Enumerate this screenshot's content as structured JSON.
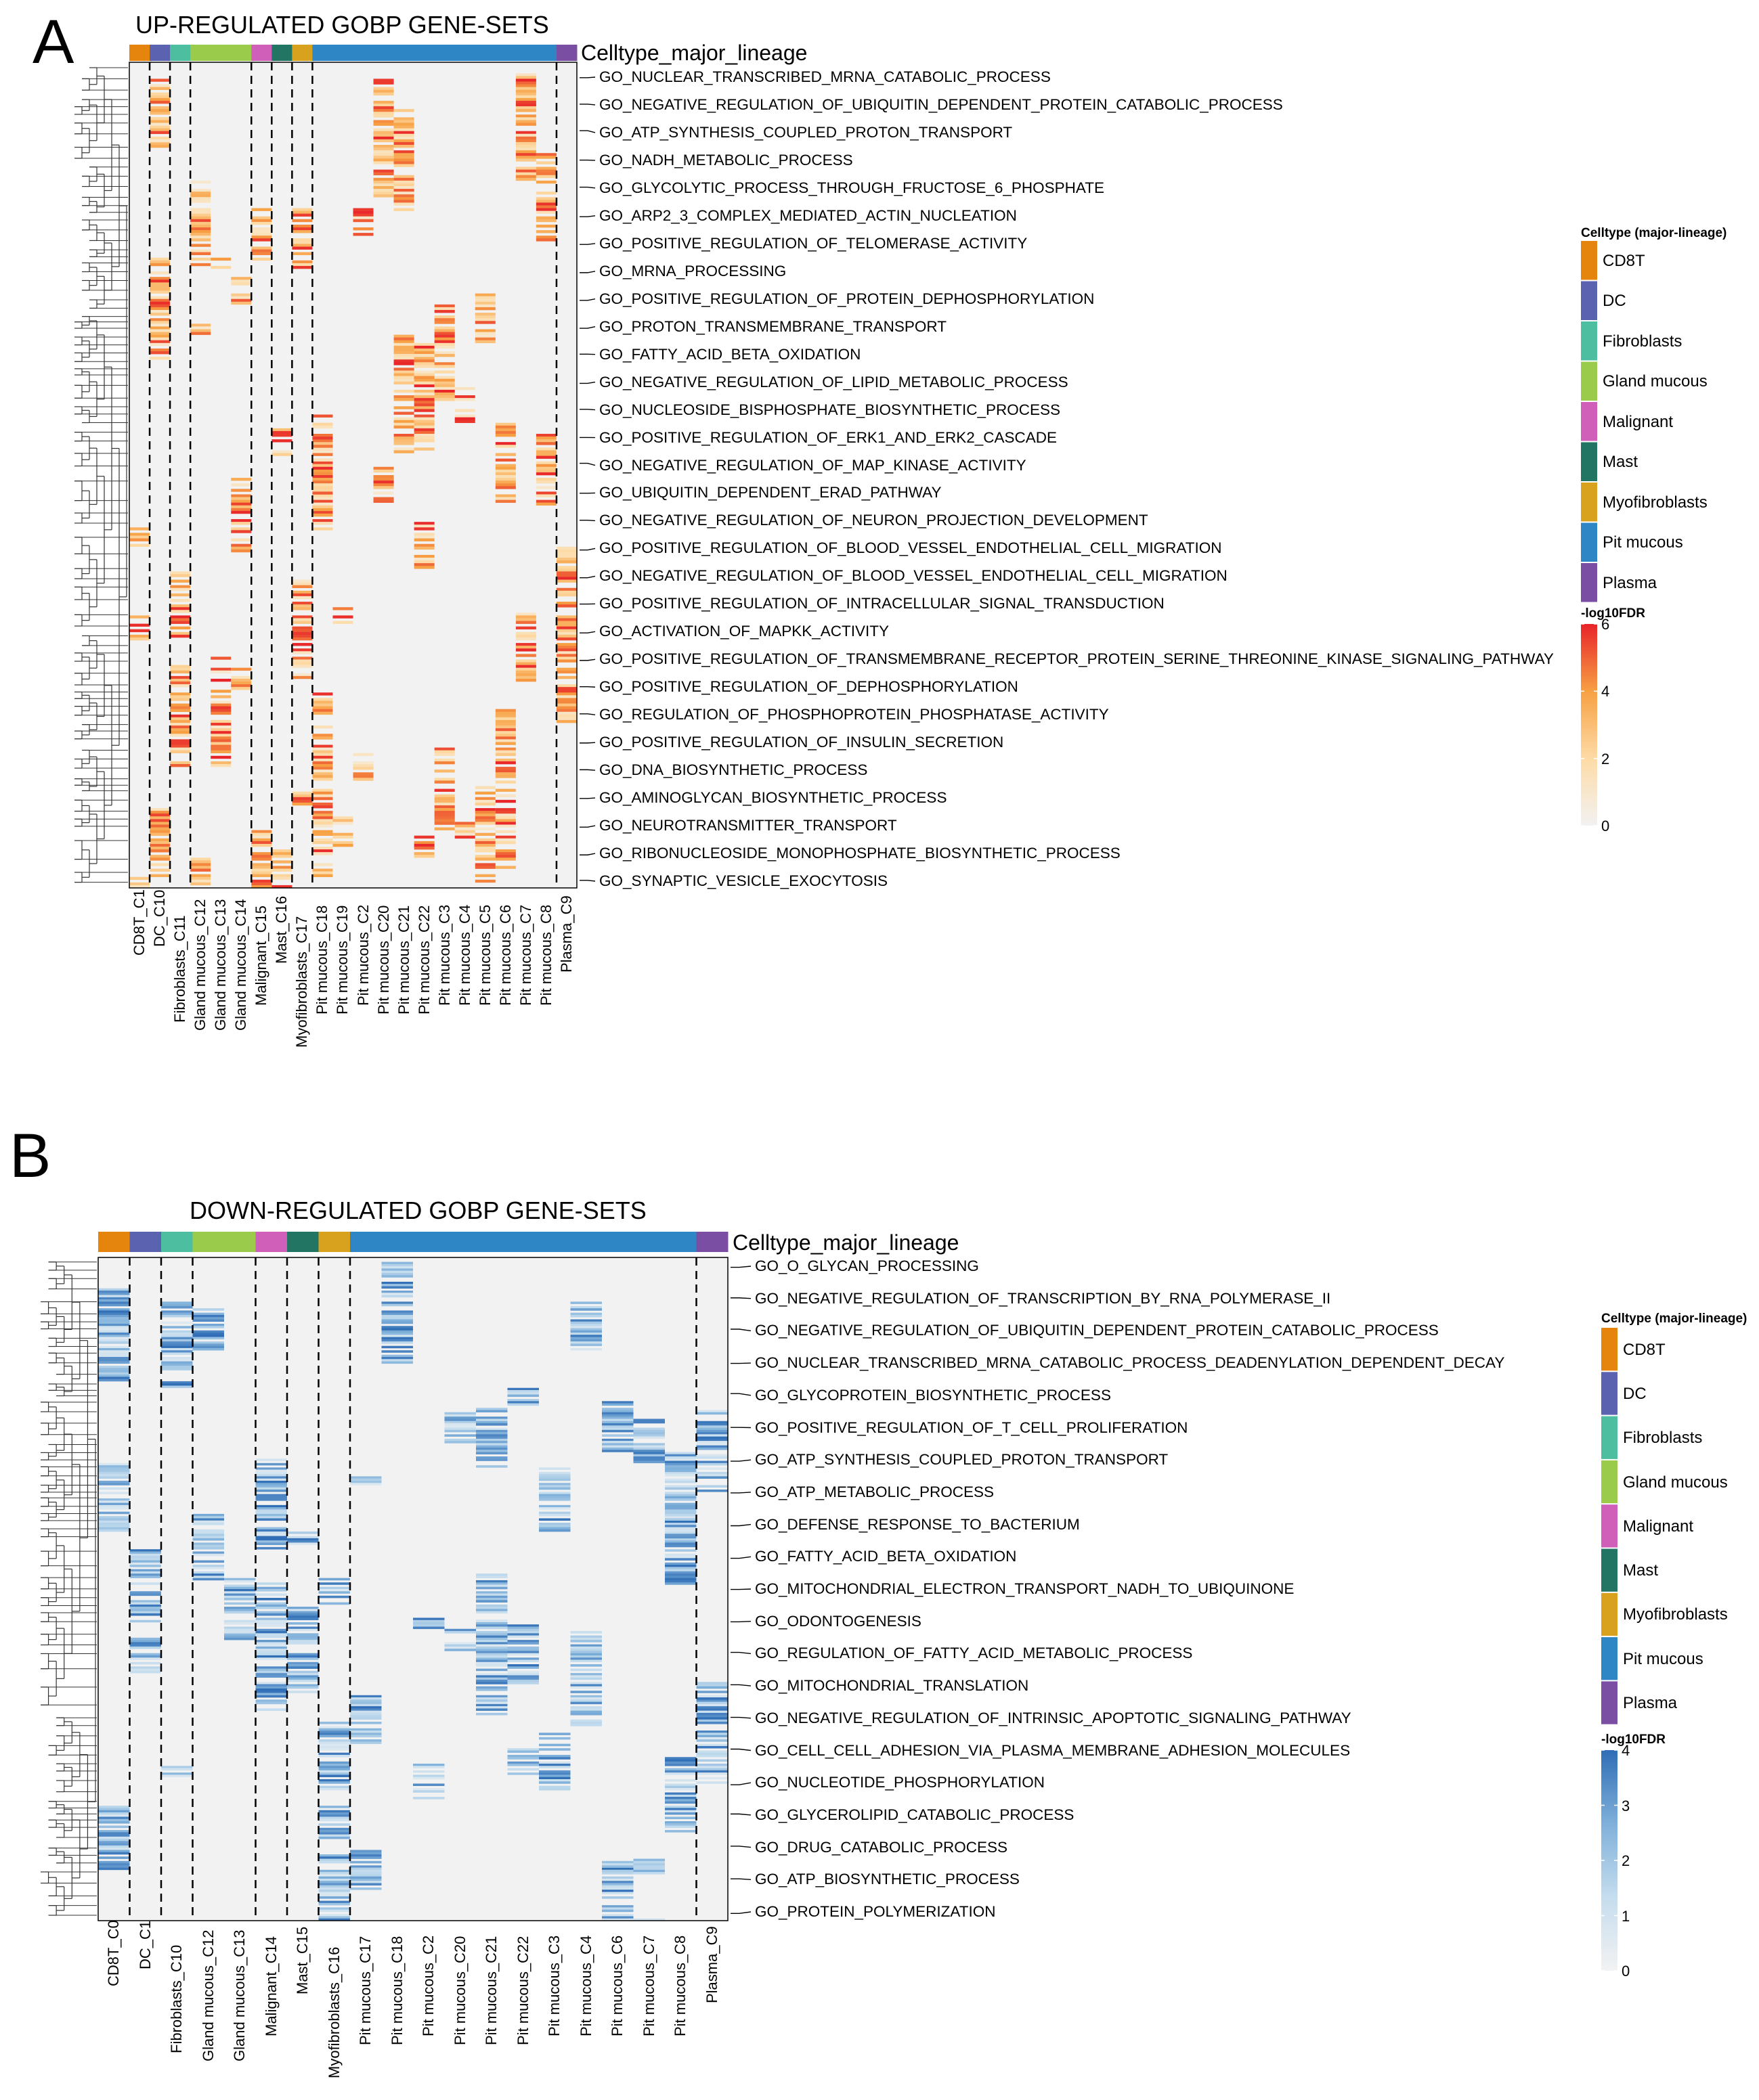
{
  "panels": [
    {
      "letter": "A",
      "title": "UP-REGULATED GOBP GENE-SETS",
      "annotation_name": "Celltype_major_lineage",
      "legend_title": "Celltype (major-lineage)",
      "scale_title": "-log10FDR",
      "scale_ticks": [
        "6",
        "4",
        "2",
        "0"
      ],
      "columns": [
        {
          "label": "CD8T_C1",
          "lineage": "CD8T"
        },
        {
          "label": "DC_C10",
          "lineage": "DC"
        },
        {
          "label": "Fibroblasts_C11",
          "lineage": "Fibroblasts"
        },
        {
          "label": "Gland mucous_C12",
          "lineage": "Gland mucous"
        },
        {
          "label": "Gland mucous_C13",
          "lineage": "Gland mucous"
        },
        {
          "label": "Gland mucous_C14",
          "lineage": "Gland mucous"
        },
        {
          "label": "Malignant_C15",
          "lineage": "Malignant"
        },
        {
          "label": "Mast_C16",
          "lineage": "Mast"
        },
        {
          "label": "Myofibroblasts_C17",
          "lineage": "Myofibroblasts"
        },
        {
          "label": "Pit mucous_C18",
          "lineage": "Pit mucous"
        },
        {
          "label": "Pit mucous_C19",
          "lineage": "Pit mucous"
        },
        {
          "label": "Pit mucous_C2",
          "lineage": "Pit mucous"
        },
        {
          "label": "Pit mucous_C20",
          "lineage": "Pit mucous"
        },
        {
          "label": "Pit mucous_C21",
          "lineage": "Pit mucous"
        },
        {
          "label": "Pit mucous_C22",
          "lineage": "Pit mucous"
        },
        {
          "label": "Pit mucous_C3",
          "lineage": "Pit mucous"
        },
        {
          "label": "Pit mucous_C4",
          "lineage": "Pit mucous"
        },
        {
          "label": "Pit mucous_C5",
          "lineage": "Pit mucous"
        },
        {
          "label": "Pit mucous_C6",
          "lineage": "Pit mucous"
        },
        {
          "label": "Pit mucous_C7",
          "lineage": "Pit mucous"
        },
        {
          "label": "Pit mucous_C8",
          "lineage": "Pit mucous"
        },
        {
          "label": "Plasma_C9",
          "lineage": "Plasma"
        }
      ],
      "gene_sets": [
        "GO_NUCLEAR_TRANSCRIBED_MRNA_CATABOLIC_PROCESS",
        "GO_NEGATIVE_REGULATION_OF_UBIQUITIN_DEPENDENT_PROTEIN_CATABOLIC_PROCESS",
        "GO_ATP_SYNTHESIS_COUPLED_PROTON_TRANSPORT",
        "GO_NADH_METABOLIC_PROCESS",
        "GO_GLYCOLYTIC_PROCESS_THROUGH_FRUCTOSE_6_PHOSPHATE",
        "GO_ARP2_3_COMPLEX_MEDIATED_ACTIN_NUCLEATION",
        "GO_POSITIVE_REGULATION_OF_TELOMERASE_ACTIVITY",
        "GO_MRNA_PROCESSING",
        "GO_POSITIVE_REGULATION_OF_PROTEIN_DEPHOSPHORYLATION",
        "GO_PROTON_TRANSMEMBRANE_TRANSPORT",
        "GO_FATTY_ACID_BETA_OXIDATION",
        "GO_NEGATIVE_REGULATION_OF_LIPID_METABOLIC_PROCESS",
        "GO_NUCLEOSIDE_BISPHOSPHATE_BIOSYNTHETIC_PROCESS",
        "GO_POSITIVE_REGULATION_OF_ERK1_AND_ERK2_CASCADE",
        "GO_NEGATIVE_REGULATION_OF_MAP_KINASE_ACTIVITY",
        "GO_UBIQUITIN_DEPENDENT_ERAD_PATHWAY",
        "GO_NEGATIVE_REGULATION_OF_NEURON_PROJECTION_DEVELOPMENT",
        "GO_POSITIVE_REGULATION_OF_BLOOD_VESSEL_ENDOTHELIAL_CELL_MIGRATION",
        "GO_NEGATIVE_REGULATION_OF_BLOOD_VESSEL_ENDOTHELIAL_CELL_MIGRATION",
        "GO_POSITIVE_REGULATION_OF_INTRACELLULAR_SIGNAL_TRANSDUCTION",
        "GO_ACTIVATION_OF_MAPKK_ACTIVITY",
        "GO_POSITIVE_REGULATION_OF_TRANSMEMBRANE_RECEPTOR_PROTEIN_SERINE_THREONINE_KINASE_SIGNALING_PATHWAY",
        "GO_POSITIVE_REGULATION_OF_DEPHOSPHORYLATION",
        "GO_REGULATION_OF_PHOSPHOPROTEIN_PHOSPHATASE_ACTIVITY",
        "GO_POSITIVE_REGULATION_OF_INSULIN_SECRETION",
        "GO_DNA_BIOSYNTHETIC_PROCESS",
        "GO_AMINOGLYCAN_BIOSYNTHETIC_PROCESS",
        "GO_NEUROTRANSMITTER_TRANSPORT",
        "GO_RIBONUCLEOSIDE_MONOPHOSPHATE_BIOSYNTHETIC_PROCESS",
        "GO_SYNAPTIC_VESICLE_EXOCYTOSIS"
      ]
    },
    {
      "letter": "B",
      "title": "DOWN-REGULATED GOBP GENE-SETS",
      "annotation_name": "Celltype_major_lineage",
      "legend_title": "Celltype (major-lineage)",
      "scale_title": "-log10FDR",
      "scale_ticks": [
        "4",
        "3",
        "2",
        "1",
        "0"
      ],
      "columns": [
        {
          "label": "CD8T_C0",
          "lineage": "CD8T"
        },
        {
          "label": "DC_C1",
          "lineage": "DC"
        },
        {
          "label": "Fibroblasts_C10",
          "lineage": "Fibroblasts"
        },
        {
          "label": "Gland mucous_C12",
          "lineage": "Gland mucous"
        },
        {
          "label": "Gland mucous_C13",
          "lineage": "Gland mucous"
        },
        {
          "label": "Malignant_C14",
          "lineage": "Malignant"
        },
        {
          "label": "Mast_C15",
          "lineage": "Mast"
        },
        {
          "label": "Myofibroblasts_C16",
          "lineage": "Myofibroblasts"
        },
        {
          "label": "Pit mucous_C17",
          "lineage": "Pit mucous"
        },
        {
          "label": "Pit mucous_C18",
          "lineage": "Pit mucous"
        },
        {
          "label": "Pit mucous_C2",
          "lineage": "Pit mucous"
        },
        {
          "label": "Pit mucous_C20",
          "lineage": "Pit mucous"
        },
        {
          "label": "Pit mucous_C21",
          "lineage": "Pit mucous"
        },
        {
          "label": "Pit mucous_C22",
          "lineage": "Pit mucous"
        },
        {
          "label": "Pit mucous_C3",
          "lineage": "Pit mucous"
        },
        {
          "label": "Pit mucous_C4",
          "lineage": "Pit mucous"
        },
        {
          "label": "Pit mucous_C6",
          "lineage": "Pit mucous"
        },
        {
          "label": "Pit mucous_C7",
          "lineage": "Pit mucous"
        },
        {
          "label": "Pit mucous_C8",
          "lineage": "Pit mucous"
        },
        {
          "label": "Plasma_C9",
          "lineage": "Plasma"
        }
      ],
      "gene_sets": [
        "GO_O_GLYCAN_PROCESSING",
        "GO_NEGATIVE_REGULATION_OF_TRANSCRIPTION_BY_RNA_POLYMERASE_II",
        "GO_NEGATIVE_REGULATION_OF_UBIQUITIN_DEPENDENT_PROTEIN_CATABOLIC_PROCESS",
        "GO_NUCLEAR_TRANSCRIBED_MRNA_CATABOLIC_PROCESS_DEADENYLATION_DEPENDENT_DECAY",
        "GO_GLYCOPROTEIN_BIOSYNTHETIC_PROCESS",
        "GO_POSITIVE_REGULATION_OF_T_CELL_PROLIFERATION",
        "GO_ATP_SYNTHESIS_COUPLED_PROTON_TRANSPORT",
        "GO_ATP_METABOLIC_PROCESS",
        "GO_DEFENSE_RESPONSE_TO_BACTERIUM",
        "GO_FATTY_ACID_BETA_OXIDATION",
        "GO_MITOCHONDRIAL_ELECTRON_TRANSPORT_NADH_TO_UBIQUINONE",
        "GO_ODONTOGENESIS",
        "GO_REGULATION_OF_FATTY_ACID_METABOLIC_PROCESS",
        "GO_MITOCHONDRIAL_TRANSLATION",
        "GO_NEGATIVE_REGULATION_OF_INTRINSIC_APOPTOTIC_SIGNALING_PATHWAY",
        "GO_CELL_CELL_ADHESION_VIA_PLASMA_MEMBRANE_ADHESION_MOLECULES",
        "GO_NUCLEOTIDE_PHOSPHORYLATION",
        "GO_GLYCEROLIPID_CATABOLIC_PROCESS",
        "GO_DRUG_CATABOLIC_PROCESS",
        "GO_ATP_BIOSYNTHETIC_PROCESS",
        "GO_PROTEIN_POLYMERIZATION"
      ]
    }
  ],
  "lineages": [
    {
      "name": "CD8T",
      "color": "#E6850E"
    },
    {
      "name": "DC",
      "color": "#5B63B0"
    },
    {
      "name": "Fibroblasts",
      "color": "#4DBFA0"
    },
    {
      "name": "Gland mucous",
      "color": "#9BCB4A"
    },
    {
      "name": "Malignant",
      "color": "#CF5FB8"
    },
    {
      "name": "Mast",
      "color": "#227562"
    },
    {
      "name": "Myofibroblasts",
      "color": "#D9A21E"
    },
    {
      "name": "Pit mucous",
      "color": "#2E86C4"
    },
    {
      "name": "Plasma",
      "color": "#7A4FA3"
    }
  ],
  "chart_data": [
    {
      "type": "heatmap",
      "title": "UP-REGULATED GOBP GENE-SETS",
      "value_name": "-log10FDR",
      "value_range": [
        0,
        6
      ],
      "color_scale": [
        "#F2F2F2",
        "#FDDBA6",
        "#F7A043",
        "#E8242A"
      ]
    },
    {
      "type": "heatmap",
      "title": "DOWN-REGULATED GOBP GENE-SETS",
      "value_name": "-log10FDR",
      "value_range": [
        0,
        4
      ],
      "color_scale": [
        "#F2F2F2",
        "#C5DDEE",
        "#7FB0DA",
        "#2F6DB5"
      ]
    }
  ]
}
